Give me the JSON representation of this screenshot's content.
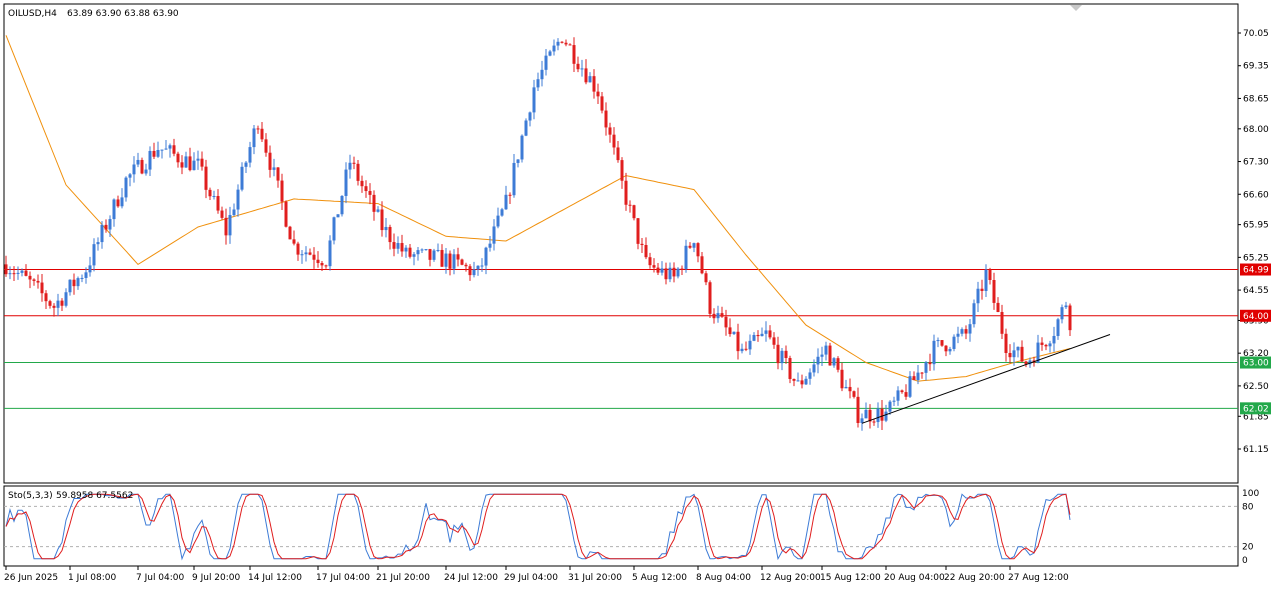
{
  "header": {
    "symbol": "OILUSD,H4",
    "ohlc": "63.89 63.90 63.88 63.90"
  },
  "indicator": {
    "label": "Sto(5,3,3)",
    "values": "59.8958 67.5562",
    "levels": [
      "100",
      "80",
      "20",
      "0"
    ]
  },
  "price_axis_ticks": [
    "70.05",
    "69.35",
    "68.65",
    "68.00",
    "67.30",
    "66.60",
    "65.95",
    "65.25",
    "64.55",
    "63.90",
    "63.20",
    "62.50",
    "61.85",
    "61.15"
  ],
  "price_tags": [
    {
      "value": "64.99",
      "color": "#e00000"
    },
    {
      "value": "64.00",
      "color": "#e00000"
    },
    {
      "value": "63.00",
      "color": "#22a84a"
    },
    {
      "value": "62.02",
      "color": "#22a84a"
    }
  ],
  "time_axis_ticks": [
    "26 Jun 2025",
    "1 Jul 08:00",
    "7 Jul 04:00",
    "9 Jul 20:00",
    "14 Jul 12:00",
    "17 Jul 04:00",
    "21 Jul 20:00",
    "24 Jul 12:00",
    "29 Jul 04:00",
    "31 Jul 20:00",
    "5 Aug 12:00",
    "8 Aug 04:00",
    "12 Aug 20:00",
    "15 Aug 12:00",
    "20 Aug 04:00",
    "22 Aug 20:00",
    "27 Aug 12:00"
  ],
  "colors": {
    "bull": "#3d7bd6",
    "bear": "#e01e1e",
    "ma": "#f0900c",
    "resistance": "#e00000",
    "support": "#22a84a",
    "stoch_main": "#3d7bd6",
    "stoch_signal": "#e01e1e"
  },
  "chart_data": {
    "type": "candlestick",
    "timeframe": "H4",
    "ylim": [
      61.15,
      70.3
    ],
    "horizontal_levels": [
      64.99,
      64.0,
      63.0,
      62.02
    ],
    "anchors": [
      {
        "t": 0,
        "price": 65.1
      },
      {
        "t": 6,
        "price": 64.7
      },
      {
        "t": 12,
        "price": 64.2
      },
      {
        "t": 20,
        "price": 65.0
      },
      {
        "t": 30,
        "price": 66.9
      },
      {
        "t": 38,
        "price": 67.6
      },
      {
        "t": 48,
        "price": 67.2
      },
      {
        "t": 55,
        "price": 65.8
      },
      {
        "t": 63,
        "price": 68.2
      },
      {
        "t": 72,
        "price": 65.5
      },
      {
        "t": 80,
        "price": 65.2
      },
      {
        "t": 86,
        "price": 67.3
      },
      {
        "t": 94,
        "price": 65.9
      },
      {
        "t": 100,
        "price": 65.3
      },
      {
        "t": 110,
        "price": 65.2
      },
      {
        "t": 118,
        "price": 64.9
      },
      {
        "t": 125,
        "price": 66.4
      },
      {
        "t": 132,
        "price": 68.9
      },
      {
        "t": 139,
        "price": 70.0
      },
      {
        "t": 148,
        "price": 68.8
      },
      {
        "t": 154,
        "price": 66.8
      },
      {
        "t": 160,
        "price": 65.1
      },
      {
        "t": 167,
        "price": 64.8
      },
      {
        "t": 172,
        "price": 65.7
      },
      {
        "t": 176,
        "price": 64.2
      },
      {
        "t": 184,
        "price": 63.2
      },
      {
        "t": 190,
        "price": 63.6
      },
      {
        "t": 198,
        "price": 62.5
      },
      {
        "t": 205,
        "price": 63.3
      },
      {
        "t": 213,
        "price": 61.9
      },
      {
        "t": 220,
        "price": 61.9
      },
      {
        "t": 226,
        "price": 62.5
      },
      {
        "t": 232,
        "price": 63.3
      },
      {
        "t": 240,
        "price": 63.6
      },
      {
        "t": 245,
        "price": 64.9
      },
      {
        "t": 250,
        "price": 63.4
      },
      {
        "t": 255,
        "price": 63.0
      },
      {
        "t": 262,
        "price": 63.7
      },
      {
        "t": 265,
        "price": 64.3
      },
      {
        "t": 266,
        "price": 63.9
      }
    ],
    "ma_anchors": [
      {
        "t": 0,
        "price": 70.0
      },
      {
        "t": 15,
        "price": 66.8
      },
      {
        "t": 33,
        "price": 65.1
      },
      {
        "t": 48,
        "price": 65.9
      },
      {
        "t": 72,
        "price": 66.5
      },
      {
        "t": 93,
        "price": 66.4
      },
      {
        "t": 110,
        "price": 65.7
      },
      {
        "t": 125,
        "price": 65.6
      },
      {
        "t": 140,
        "price": 66.3
      },
      {
        "t": 155,
        "price": 67.0
      },
      {
        "t": 172,
        "price": 66.7
      },
      {
        "t": 185,
        "price": 65.3
      },
      {
        "t": 200,
        "price": 63.8
      },
      {
        "t": 215,
        "price": 63.0
      },
      {
        "t": 228,
        "price": 62.6
      },
      {
        "t": 240,
        "price": 62.7
      },
      {
        "t": 252,
        "price": 63.0
      },
      {
        "t": 266,
        "price": 63.3
      }
    ],
    "trendline": {
      "t_start": 214,
      "price_start": 61.7,
      "t_end": 276,
      "price_end": 63.6
    },
    "stochastic": {
      "k": 59.8958,
      "d": 67.5562,
      "upper": 80,
      "lower": 20
    }
  }
}
